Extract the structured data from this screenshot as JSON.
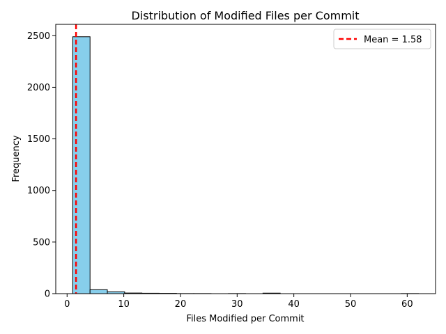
{
  "chart_data": {
    "type": "bar",
    "title": "Distribution of Modified Files per Commit",
    "xlabel": "Files Modified per Commit",
    "ylabel": "Frequency",
    "xlim": [
      -2,
      65
    ],
    "ylim": [
      0,
      2610
    ],
    "xticks": [
      0,
      10,
      20,
      30,
      40,
      50,
      60
    ],
    "yticks": [
      0,
      500,
      1000,
      1500,
      2000,
      2500
    ],
    "bins": [
      {
        "x0": 1.0,
        "x1": 4.05,
        "count": 2490
      },
      {
        "x0": 4.05,
        "x1": 7.1,
        "count": 38
      },
      {
        "x0": 7.1,
        "x1": 10.15,
        "count": 18
      },
      {
        "x0": 10.15,
        "x1": 13.2,
        "count": 6
      },
      {
        "x0": 13.2,
        "x1": 16.25,
        "count": 4
      },
      {
        "x0": 16.25,
        "x1": 19.3,
        "count": 3
      },
      {
        "x0": 19.3,
        "x1": 22.35,
        "count": 1
      },
      {
        "x0": 22.35,
        "x1": 25.4,
        "count": 1
      },
      {
        "x0": 25.4,
        "x1": 28.45,
        "count": 0
      },
      {
        "x0": 28.45,
        "x1": 31.5,
        "count": 1
      },
      {
        "x0": 31.5,
        "x1": 34.55,
        "count": 0
      },
      {
        "x0": 34.55,
        "x1": 37.6,
        "count": 5
      },
      {
        "x0": 37.6,
        "x1": 40.65,
        "count": 0
      },
      {
        "x0": 40.65,
        "x1": 43.7,
        "count": 0
      },
      {
        "x0": 43.7,
        "x1": 46.75,
        "count": 0
      },
      {
        "x0": 46.75,
        "x1": 49.8,
        "count": 0
      },
      {
        "x0": 49.8,
        "x1": 52.85,
        "count": 0
      },
      {
        "x0": 52.85,
        "x1": 55.9,
        "count": 0
      },
      {
        "x0": 55.9,
        "x1": 58.95,
        "count": 0
      },
      {
        "x0": 58.95,
        "x1": 62.0,
        "count": 1
      }
    ],
    "mean_line": {
      "value": 1.58,
      "label": "Mean = 1.58",
      "color": "#ff0000"
    },
    "bar_color": "#87ceeb",
    "bar_edge_color": "#000000",
    "legend_position": "top-right",
    "grid": false
  }
}
